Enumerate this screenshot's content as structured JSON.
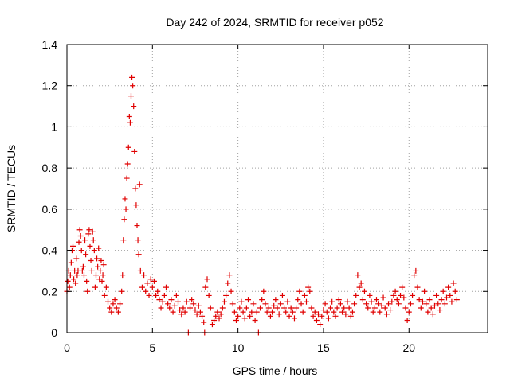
{
  "chart_data": {
    "type": "scatter",
    "title": "Day 242 of 2024, SRMTID for receiver p052",
    "xlabel": "GPS time / hours",
    "ylabel": "SRMTID / TECUs",
    "xlim": [
      0,
      24.6
    ],
    "ylim": [
      0,
      1.4
    ],
    "xticks": [
      0,
      5,
      10,
      15,
      20
    ],
    "xtick_labels": [
      "0",
      "5",
      "10",
      "15",
      "20"
    ],
    "yticks": [
      0,
      0.2,
      0.4,
      0.6,
      0.8,
      1,
      1.2,
      1.4
    ],
    "ytick_labels": [
      "0",
      "0.2",
      "0.4",
      "0.6",
      "0.8",
      "1",
      "1.2",
      "1.4"
    ],
    "grid": true,
    "marker": "+",
    "series": [
      {
        "name": "SRMTID",
        "color": "#e00000",
        "points": [
          [
            0.0,
            0.2
          ],
          [
            0.05,
            0.25
          ],
          [
            0.1,
            0.3
          ],
          [
            0.15,
            0.22
          ],
          [
            0.2,
            0.28
          ],
          [
            0.25,
            0.34
          ],
          [
            0.3,
            0.4
          ],
          [
            0.35,
            0.42
          ],
          [
            0.4,
            0.26
          ],
          [
            0.45,
            0.3
          ],
          [
            0.5,
            0.24
          ],
          [
            0.55,
            0.36
          ],
          [
            0.6,
            0.28
          ],
          [
            0.65,
            0.3
          ],
          [
            0.7,
            0.44
          ],
          [
            0.75,
            0.5
          ],
          [
            0.8,
            0.47
          ],
          [
            0.85,
            0.4
          ],
          [
            0.9,
            0.3
          ],
          [
            0.95,
            0.32
          ],
          [
            1.0,
            0.28
          ],
          [
            1.05,
            0.45
          ],
          [
            1.1,
            0.38
          ],
          [
            1.15,
            0.25
          ],
          [
            1.2,
            0.2
          ],
          [
            1.25,
            0.48
          ],
          [
            1.3,
            0.5
          ],
          [
            1.35,
            0.42
          ],
          [
            1.4,
            0.35
          ],
          [
            1.45,
            0.3
          ],
          [
            1.5,
            0.49
          ],
          [
            1.55,
            0.45
          ],
          [
            1.6,
            0.4
          ],
          [
            1.65,
            0.22
          ],
          [
            1.7,
            0.28
          ],
          [
            1.75,
            0.36
          ],
          [
            1.8,
            0.32
          ],
          [
            1.85,
            0.41
          ],
          [
            1.9,
            0.26
          ],
          [
            1.95,
            0.3
          ],
          [
            2.0,
            0.35
          ],
          [
            2.05,
            0.25
          ],
          [
            2.1,
            0.28
          ],
          [
            2.15,
            0.33
          ],
          [
            2.2,
            0.18
          ],
          [
            2.3,
            0.22
          ],
          [
            2.4,
            0.15
          ],
          [
            2.5,
            0.12
          ],
          [
            2.6,
            0.1
          ],
          [
            2.7,
            0.14
          ],
          [
            2.8,
            0.16
          ],
          [
            2.9,
            0.12
          ],
          [
            3.0,
            0.1
          ],
          [
            3.1,
            0.14
          ],
          [
            3.2,
            0.2
          ],
          [
            3.25,
            0.28
          ],
          [
            3.3,
            0.45
          ],
          [
            3.35,
            0.55
          ],
          [
            3.4,
            0.65
          ],
          [
            3.45,
            0.6
          ],
          [
            3.5,
            0.75
          ],
          [
            3.55,
            0.82
          ],
          [
            3.6,
            0.9
          ],
          [
            3.65,
            1.05
          ],
          [
            3.7,
            1.02
          ],
          [
            3.75,
            1.15
          ],
          [
            3.8,
            1.24
          ],
          [
            3.85,
            1.2
          ],
          [
            3.9,
            1.1
          ],
          [
            3.95,
            0.88
          ],
          [
            4.0,
            0.7
          ],
          [
            4.05,
            0.62
          ],
          [
            4.1,
            0.52
          ],
          [
            4.15,
            0.45
          ],
          [
            4.2,
            0.38
          ],
          [
            4.25,
            0.72
          ],
          [
            4.3,
            0.3
          ],
          [
            4.4,
            0.22
          ],
          [
            4.5,
            0.28
          ],
          [
            4.6,
            0.2
          ],
          [
            4.7,
            0.24
          ],
          [
            4.8,
            0.18
          ],
          [
            4.9,
            0.26
          ],
          [
            5.0,
            0.22
          ],
          [
            5.1,
            0.25
          ],
          [
            5.2,
            0.18
          ],
          [
            5.3,
            0.2
          ],
          [
            5.4,
            0.16
          ],
          [
            5.5,
            0.12
          ],
          [
            5.6,
            0.15
          ],
          [
            5.7,
            0.18
          ],
          [
            5.8,
            0.22
          ],
          [
            5.9,
            0.14
          ],
          [
            6.0,
            0.12
          ],
          [
            6.1,
            0.16
          ],
          [
            6.2,
            0.1
          ],
          [
            6.3,
            0.13
          ],
          [
            6.4,
            0.18
          ],
          [
            6.5,
            0.15
          ],
          [
            6.6,
            0.11
          ],
          [
            6.7,
            0.09
          ],
          [
            6.8,
            0.12
          ],
          [
            6.9,
            0.1
          ],
          [
            7.0,
            0.15
          ],
          [
            7.1,
            0.0
          ],
          [
            7.2,
            0.12
          ],
          [
            7.3,
            0.16
          ],
          [
            7.4,
            0.14
          ],
          [
            7.5,
            0.11
          ],
          [
            7.6,
            0.09
          ],
          [
            7.7,
            0.13
          ],
          [
            7.8,
            0.1
          ],
          [
            7.9,
            0.08
          ],
          [
            8.0,
            0.05
          ],
          [
            8.05,
            0.0
          ],
          [
            8.1,
            0.22
          ],
          [
            8.2,
            0.26
          ],
          [
            8.3,
            0.18
          ],
          [
            8.4,
            0.12
          ],
          [
            8.5,
            0.04
          ],
          [
            8.6,
            0.06
          ],
          [
            8.7,
            0.08
          ],
          [
            8.8,
            0.1
          ],
          [
            8.9,
            0.07
          ],
          [
            9.0,
            0.09
          ],
          [
            9.1,
            0.12
          ],
          [
            9.2,
            0.15
          ],
          [
            9.3,
            0.18
          ],
          [
            9.4,
            0.24
          ],
          [
            9.5,
            0.28
          ],
          [
            9.6,
            0.2
          ],
          [
            9.7,
            0.14
          ],
          [
            9.8,
            0.1
          ],
          [
            9.9,
            0.06
          ],
          [
            10.0,
            0.08
          ],
          [
            10.1,
            0.12
          ],
          [
            10.2,
            0.15
          ],
          [
            10.3,
            0.1
          ],
          [
            10.4,
            0.07
          ],
          [
            10.5,
            0.12
          ],
          [
            10.6,
            0.16
          ],
          [
            10.7,
            0.08
          ],
          [
            10.8,
            0.1
          ],
          [
            10.9,
            0.14
          ],
          [
            11.0,
            0.06
          ],
          [
            11.1,
            0.1
          ],
          [
            11.2,
            0.0
          ],
          [
            11.3,
            0.12
          ],
          [
            11.4,
            0.16
          ],
          [
            11.5,
            0.2
          ],
          [
            11.6,
            0.14
          ],
          [
            11.7,
            0.1
          ],
          [
            11.8,
            0.12
          ],
          [
            11.9,
            0.08
          ],
          [
            12.0,
            0.1
          ],
          [
            12.1,
            0.13
          ],
          [
            12.2,
            0.16
          ],
          [
            12.3,
            0.12
          ],
          [
            12.4,
            0.09
          ],
          [
            12.5,
            0.14
          ],
          [
            12.6,
            0.18
          ],
          [
            12.7,
            0.12
          ],
          [
            12.8,
            0.1
          ],
          [
            12.9,
            0.15
          ],
          [
            13.0,
            0.08
          ],
          [
            13.1,
            0.12
          ],
          [
            13.2,
            0.1
          ],
          [
            13.3,
            0.07
          ],
          [
            13.4,
            0.12
          ],
          [
            13.5,
            0.16
          ],
          [
            13.6,
            0.2
          ],
          [
            13.7,
            0.14
          ],
          [
            13.8,
            0.1
          ],
          [
            13.9,
            0.18
          ],
          [
            14.0,
            0.15
          ],
          [
            14.1,
            0.22
          ],
          [
            14.2,
            0.2
          ],
          [
            14.3,
            0.12
          ],
          [
            14.4,
            0.08
          ],
          [
            14.5,
            0.1
          ],
          [
            14.6,
            0.06
          ],
          [
            14.7,
            0.09
          ],
          [
            14.8,
            0.04
          ],
          [
            14.9,
            0.08
          ],
          [
            15.0,
            0.11
          ],
          [
            15.1,
            0.14
          ],
          [
            15.2,
            0.1
          ],
          [
            15.3,
            0.07
          ],
          [
            15.4,
            0.12
          ],
          [
            15.5,
            0.15
          ],
          [
            15.6,
            0.1
          ],
          [
            15.7,
            0.08
          ],
          [
            15.8,
            0.12
          ],
          [
            15.9,
            0.16
          ],
          [
            16.0,
            0.14
          ],
          [
            16.1,
            0.1
          ],
          [
            16.2,
            0.12
          ],
          [
            16.3,
            0.09
          ],
          [
            16.4,
            0.15
          ],
          [
            16.5,
            0.12
          ],
          [
            16.6,
            0.08
          ],
          [
            16.7,
            0.1
          ],
          [
            16.8,
            0.14
          ],
          [
            16.9,
            0.18
          ],
          [
            17.0,
            0.28
          ],
          [
            17.1,
            0.22
          ],
          [
            17.2,
            0.24
          ],
          [
            17.3,
            0.16
          ],
          [
            17.4,
            0.2
          ],
          [
            17.5,
            0.14
          ],
          [
            17.6,
            0.12
          ],
          [
            17.7,
            0.18
          ],
          [
            17.8,
            0.15
          ],
          [
            17.9,
            0.1
          ],
          [
            18.0,
            0.12
          ],
          [
            18.1,
            0.16
          ],
          [
            18.2,
            0.14
          ],
          [
            18.3,
            0.1
          ],
          [
            18.4,
            0.13
          ],
          [
            18.5,
            0.17
          ],
          [
            18.6,
            0.12
          ],
          [
            18.7,
            0.09
          ],
          [
            18.8,
            0.14
          ],
          [
            18.9,
            0.11
          ],
          [
            19.0,
            0.15
          ],
          [
            19.1,
            0.18
          ],
          [
            19.2,
            0.2
          ],
          [
            19.3,
            0.16
          ],
          [
            19.4,
            0.14
          ],
          [
            19.5,
            0.18
          ],
          [
            19.6,
            0.22
          ],
          [
            19.7,
            0.17
          ],
          [
            19.8,
            0.12
          ],
          [
            19.9,
            0.06
          ],
          [
            20.0,
            0.1
          ],
          [
            20.1,
            0.14
          ],
          [
            20.2,
            0.18
          ],
          [
            20.3,
            0.28
          ],
          [
            20.4,
            0.3
          ],
          [
            20.5,
            0.22
          ],
          [
            20.6,
            0.16
          ],
          [
            20.7,
            0.12
          ],
          [
            20.8,
            0.15
          ],
          [
            20.9,
            0.2
          ],
          [
            21.0,
            0.14
          ],
          [
            21.1,
            0.1
          ],
          [
            21.2,
            0.16
          ],
          [
            21.3,
            0.12
          ],
          [
            21.4,
            0.09
          ],
          [
            21.5,
            0.13
          ],
          [
            21.6,
            0.18
          ],
          [
            21.7,
            0.14
          ],
          [
            21.8,
            0.11
          ],
          [
            21.9,
            0.16
          ],
          [
            22.0,
            0.2
          ],
          [
            22.1,
            0.14
          ],
          [
            22.2,
            0.17
          ],
          [
            22.3,
            0.22
          ],
          [
            22.4,
            0.18
          ],
          [
            22.5,
            0.15
          ],
          [
            22.6,
            0.24
          ],
          [
            22.7,
            0.2
          ],
          [
            22.8,
            0.16
          ]
        ]
      }
    ]
  }
}
